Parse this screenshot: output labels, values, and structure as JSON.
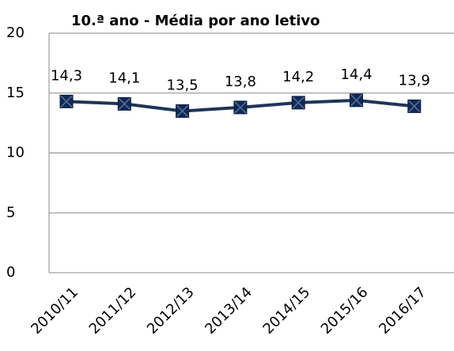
{
  "chart_data": {
    "type": "line",
    "title": "10.ª ano - Média por ano letivo",
    "categories": [
      "2010/11",
      "2011/12",
      "2012/13",
      "2013/14",
      "2014/15",
      "2015/16",
      "2016/17"
    ],
    "series": [
      {
        "color": "#1f3556",
        "values": [
          14.3,
          14.1,
          13.5,
          13.8,
          14.2,
          14.4,
          13.9
        ],
        "value_labels": [
          "14,3",
          "14,1",
          "13,5",
          "13,8",
          "14,2",
          "14,4",
          "13,9"
        ]
      }
    ],
    "ylim": [
      0,
      20
    ],
    "yticks": [
      0,
      5,
      10,
      15,
      20
    ],
    "grid": true
  }
}
